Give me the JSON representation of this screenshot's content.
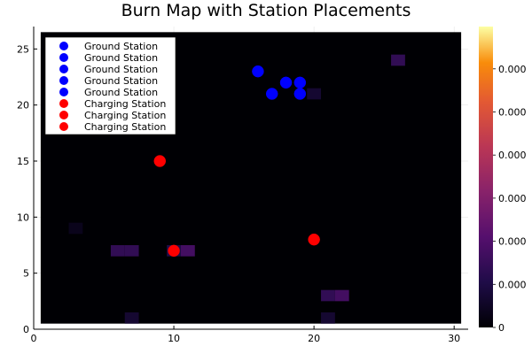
{
  "chart_data": {
    "type": "heatmap",
    "title": "Burn Map with Station Placements",
    "xlabel": "",
    "ylabel": "",
    "xlim": [
      0,
      31
    ],
    "ylim": [
      0,
      27
    ],
    "xticks": [
      0,
      10,
      20,
      30
    ],
    "yticks": [
      0,
      5,
      10,
      15,
      20,
      25
    ],
    "grid": true,
    "legend_position": "top-left",
    "heatmap": {
      "x_range": [
        1,
        30
      ],
      "y_range": [
        1,
        26
      ],
      "base_value": 0,
      "faint_cells": [
        {
          "x": 6,
          "y": 7,
          "v": 0.2
        },
        {
          "x": 7,
          "y": 7,
          "v": 0.2
        },
        {
          "x": 10,
          "y": 7,
          "v": 0.15
        },
        {
          "x": 11,
          "y": 7,
          "v": 0.25
        },
        {
          "x": 21,
          "y": 3,
          "v": 0.2
        },
        {
          "x": 22,
          "y": 3,
          "v": 0.25
        },
        {
          "x": 21,
          "y": 1,
          "v": 0.1
        },
        {
          "x": 26,
          "y": 24,
          "v": 0.2
        },
        {
          "x": 20,
          "y": 21,
          "v": 0.1
        },
        {
          "x": 7,
          "y": 1,
          "v": 0.1
        },
        {
          "x": 3,
          "y": 9,
          "v": 0.05
        }
      ]
    },
    "colorbar": {
      "tick_labels": [
        "0",
        "0.000",
        "0.000",
        "0.000",
        "0.000",
        "0.000",
        "0.000"
      ],
      "colormap": "inferno"
    },
    "series": [
      {
        "name": "Ground Station",
        "color": "#0000ff",
        "points": [
          [
            16,
            23
          ],
          [
            18,
            22
          ],
          [
            19,
            22
          ],
          [
            17,
            21
          ],
          [
            19,
            21
          ]
        ]
      },
      {
        "name": "Charging Station",
        "color": "#ff0000",
        "points": [
          [
            9,
            15
          ],
          [
            10,
            7
          ],
          [
            20,
            8
          ]
        ]
      }
    ],
    "legend_entries": [
      {
        "label": "Ground Station",
        "color": "#0000ff"
      },
      {
        "label": "Ground Station",
        "color": "#0000ff"
      },
      {
        "label": "Ground Station",
        "color": "#0000ff"
      },
      {
        "label": "Ground Station",
        "color": "#0000ff"
      },
      {
        "label": "Ground Station",
        "color": "#0000ff"
      },
      {
        "label": "Charging Station",
        "color": "#ff0000"
      },
      {
        "label": "Charging Station",
        "color": "#ff0000"
      },
      {
        "label": "Charging Station",
        "color": "#ff0000"
      }
    ]
  }
}
